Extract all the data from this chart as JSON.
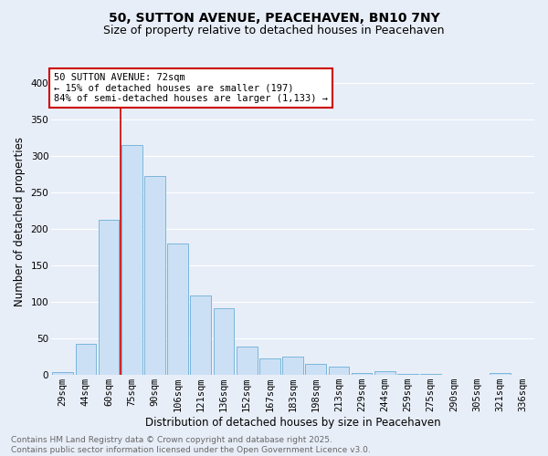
{
  "title_line1": "50, SUTTON AVENUE, PEACEHAVEN, BN10 7NY",
  "title_line2": "Size of property relative to detached houses in Peacehaven",
  "xlabel": "Distribution of detached houses by size in Peacehaven",
  "ylabel": "Number of detached properties",
  "categories": [
    "29sqm",
    "44sqm",
    "60sqm",
    "75sqm",
    "90sqm",
    "106sqm",
    "121sqm",
    "136sqm",
    "152sqm",
    "167sqm",
    "183sqm",
    "198sqm",
    "213sqm",
    "229sqm",
    "244sqm",
    "259sqm",
    "275sqm",
    "290sqm",
    "305sqm",
    "321sqm",
    "336sqm"
  ],
  "values": [
    4,
    43,
    212,
    315,
    273,
    180,
    109,
    92,
    39,
    23,
    25,
    15,
    12,
    3,
    5,
    2,
    1,
    0,
    0,
    3,
    0
  ],
  "bar_color": "#cce0f5",
  "bar_edge_color": "#6aaed6",
  "vline_x_index": 3,
  "vline_color": "#cc0000",
  "annotation_text": "50 SUTTON AVENUE: 72sqm\n← 15% of detached houses are smaller (197)\n84% of semi-detached houses are larger (1,133) →",
  "annotation_box_color": "#ffffff",
  "annotation_box_edge_color": "#cc0000",
  "ylim": [
    0,
    420
  ],
  "yticks": [
    0,
    50,
    100,
    150,
    200,
    250,
    300,
    350,
    400
  ],
  "footnote": "Contains HM Land Registry data © Crown copyright and database right 2025.\nContains public sector information licensed under the Open Government Licence v3.0.",
  "background_color": "#e8eef8",
  "grid_color": "#ffffff",
  "title_fontsize": 10,
  "subtitle_fontsize": 9,
  "xlabel_fontsize": 8.5,
  "ylabel_fontsize": 8.5,
  "tick_fontsize": 7.5,
  "annotation_fontsize": 7.5,
  "footnote_fontsize": 6.5
}
